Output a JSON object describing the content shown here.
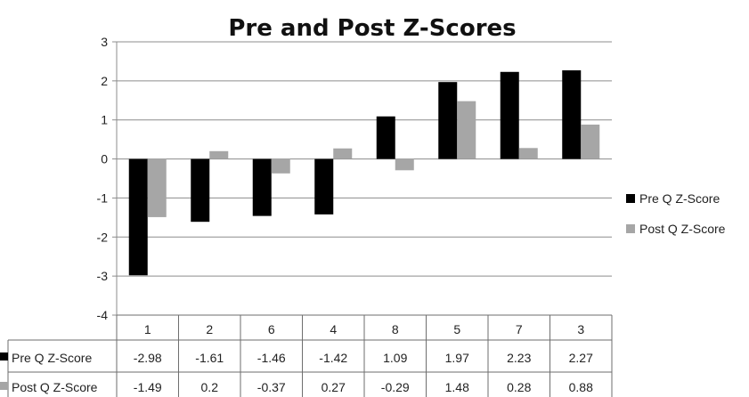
{
  "chart_data": {
    "type": "bar",
    "title": "Pre and Post Z-Scores",
    "categories": [
      "1",
      "2",
      "6",
      "4",
      "8",
      "5",
      "7",
      "3"
    ],
    "series": [
      {
        "name": "Pre Q Z-Score",
        "color": "#000000",
        "values": [
          -2.98,
          -1.61,
          -1.46,
          -1.42,
          1.09,
          1.97,
          2.23,
          2.27
        ],
        "labels": [
          "-2.98",
          "-1.61",
          "-1.46",
          "-1.42",
          "1.09",
          "1.97",
          "2.23",
          "2.27"
        ]
      },
      {
        "name": "Post Q Z-Score",
        "color": "#a6a6a6",
        "values": [
          -1.49,
          0.2,
          -0.37,
          0.27,
          -0.29,
          1.48,
          0.28,
          0.88
        ],
        "labels": [
          "-1.49",
          "0.2",
          "-0.37",
          "0.27",
          "-0.29",
          "1.48",
          "0.28",
          "0.88"
        ]
      }
    ],
    "ylim": [
      -4,
      3
    ],
    "yticks": [
      "3",
      "2",
      "1",
      "0",
      "-1",
      "-2",
      "-3",
      "-4"
    ],
    "grid": true,
    "legend": "right",
    "data_table": true
  }
}
